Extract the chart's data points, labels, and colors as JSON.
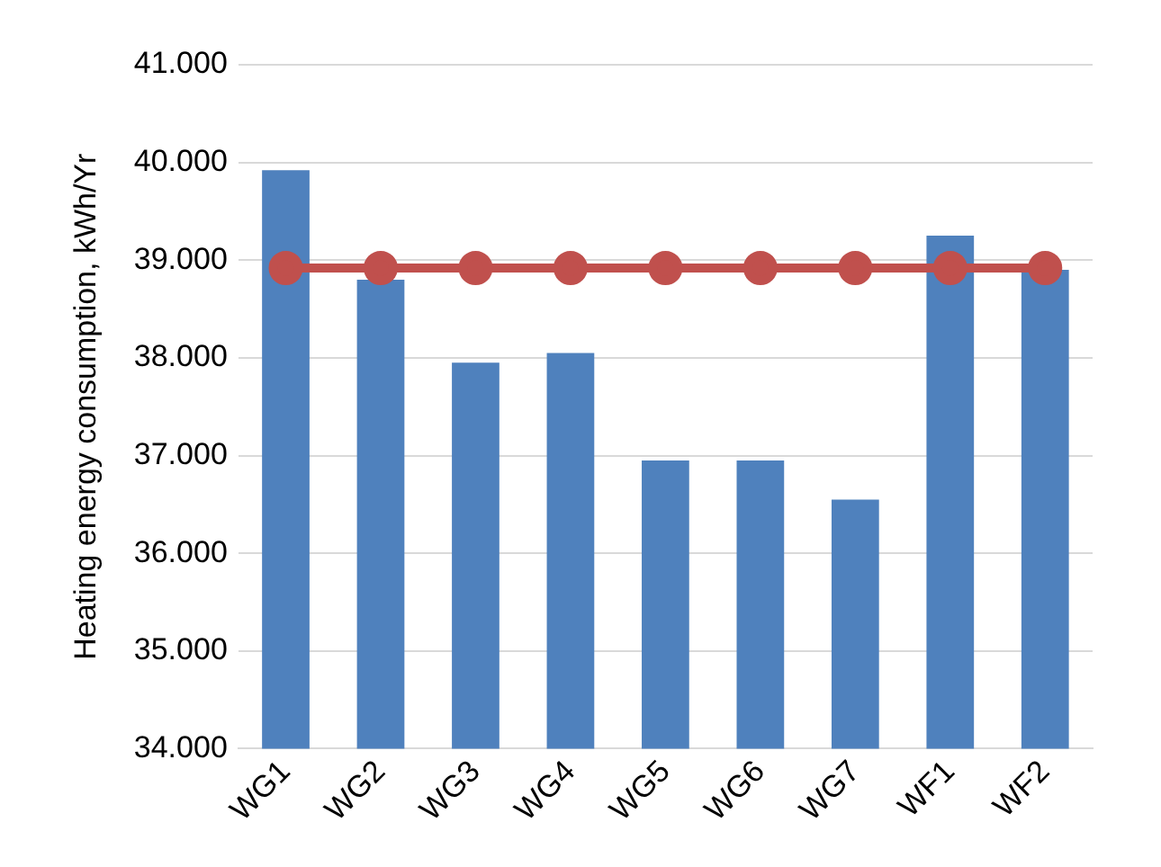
{
  "chart_data": {
    "type": "bar",
    "ylabel": "Heating energy consumption, kWh/Yr",
    "categories": [
      "WG1",
      "WG2",
      "WG3",
      "WG4",
      "WG5",
      "WG6",
      "WG7",
      "WF1",
      "WF2"
    ],
    "series": [
      {
        "color": "#4f81bd",
        "values": [
          39.92,
          38.8,
          37.95,
          38.05,
          36.95,
          36.95,
          36.55,
          39.25,
          38.9
        ]
      },
      {
        "type": "line",
        "color": "#c0504d",
        "marker": "circle",
        "values": [
          38.92,
          38.92,
          38.92,
          38.92,
          38.92,
          38.92,
          38.92,
          38.92,
          38.92
        ]
      }
    ],
    "ylim": [
      34,
      41
    ],
    "yticks": [
      {
        "value": 34,
        "label": "34.000"
      },
      {
        "value": 35,
        "label": "35.000"
      },
      {
        "value": 36,
        "label": "36.000"
      },
      {
        "value": 37,
        "label": "37.000"
      },
      {
        "value": 38,
        "label": "38.000"
      },
      {
        "value": 39,
        "label": "39.000"
      },
      {
        "value": 40,
        "label": "40.000"
      },
      {
        "value": 41,
        "label": "41.000"
      }
    ],
    "grid": "y",
    "legend": false
  }
}
